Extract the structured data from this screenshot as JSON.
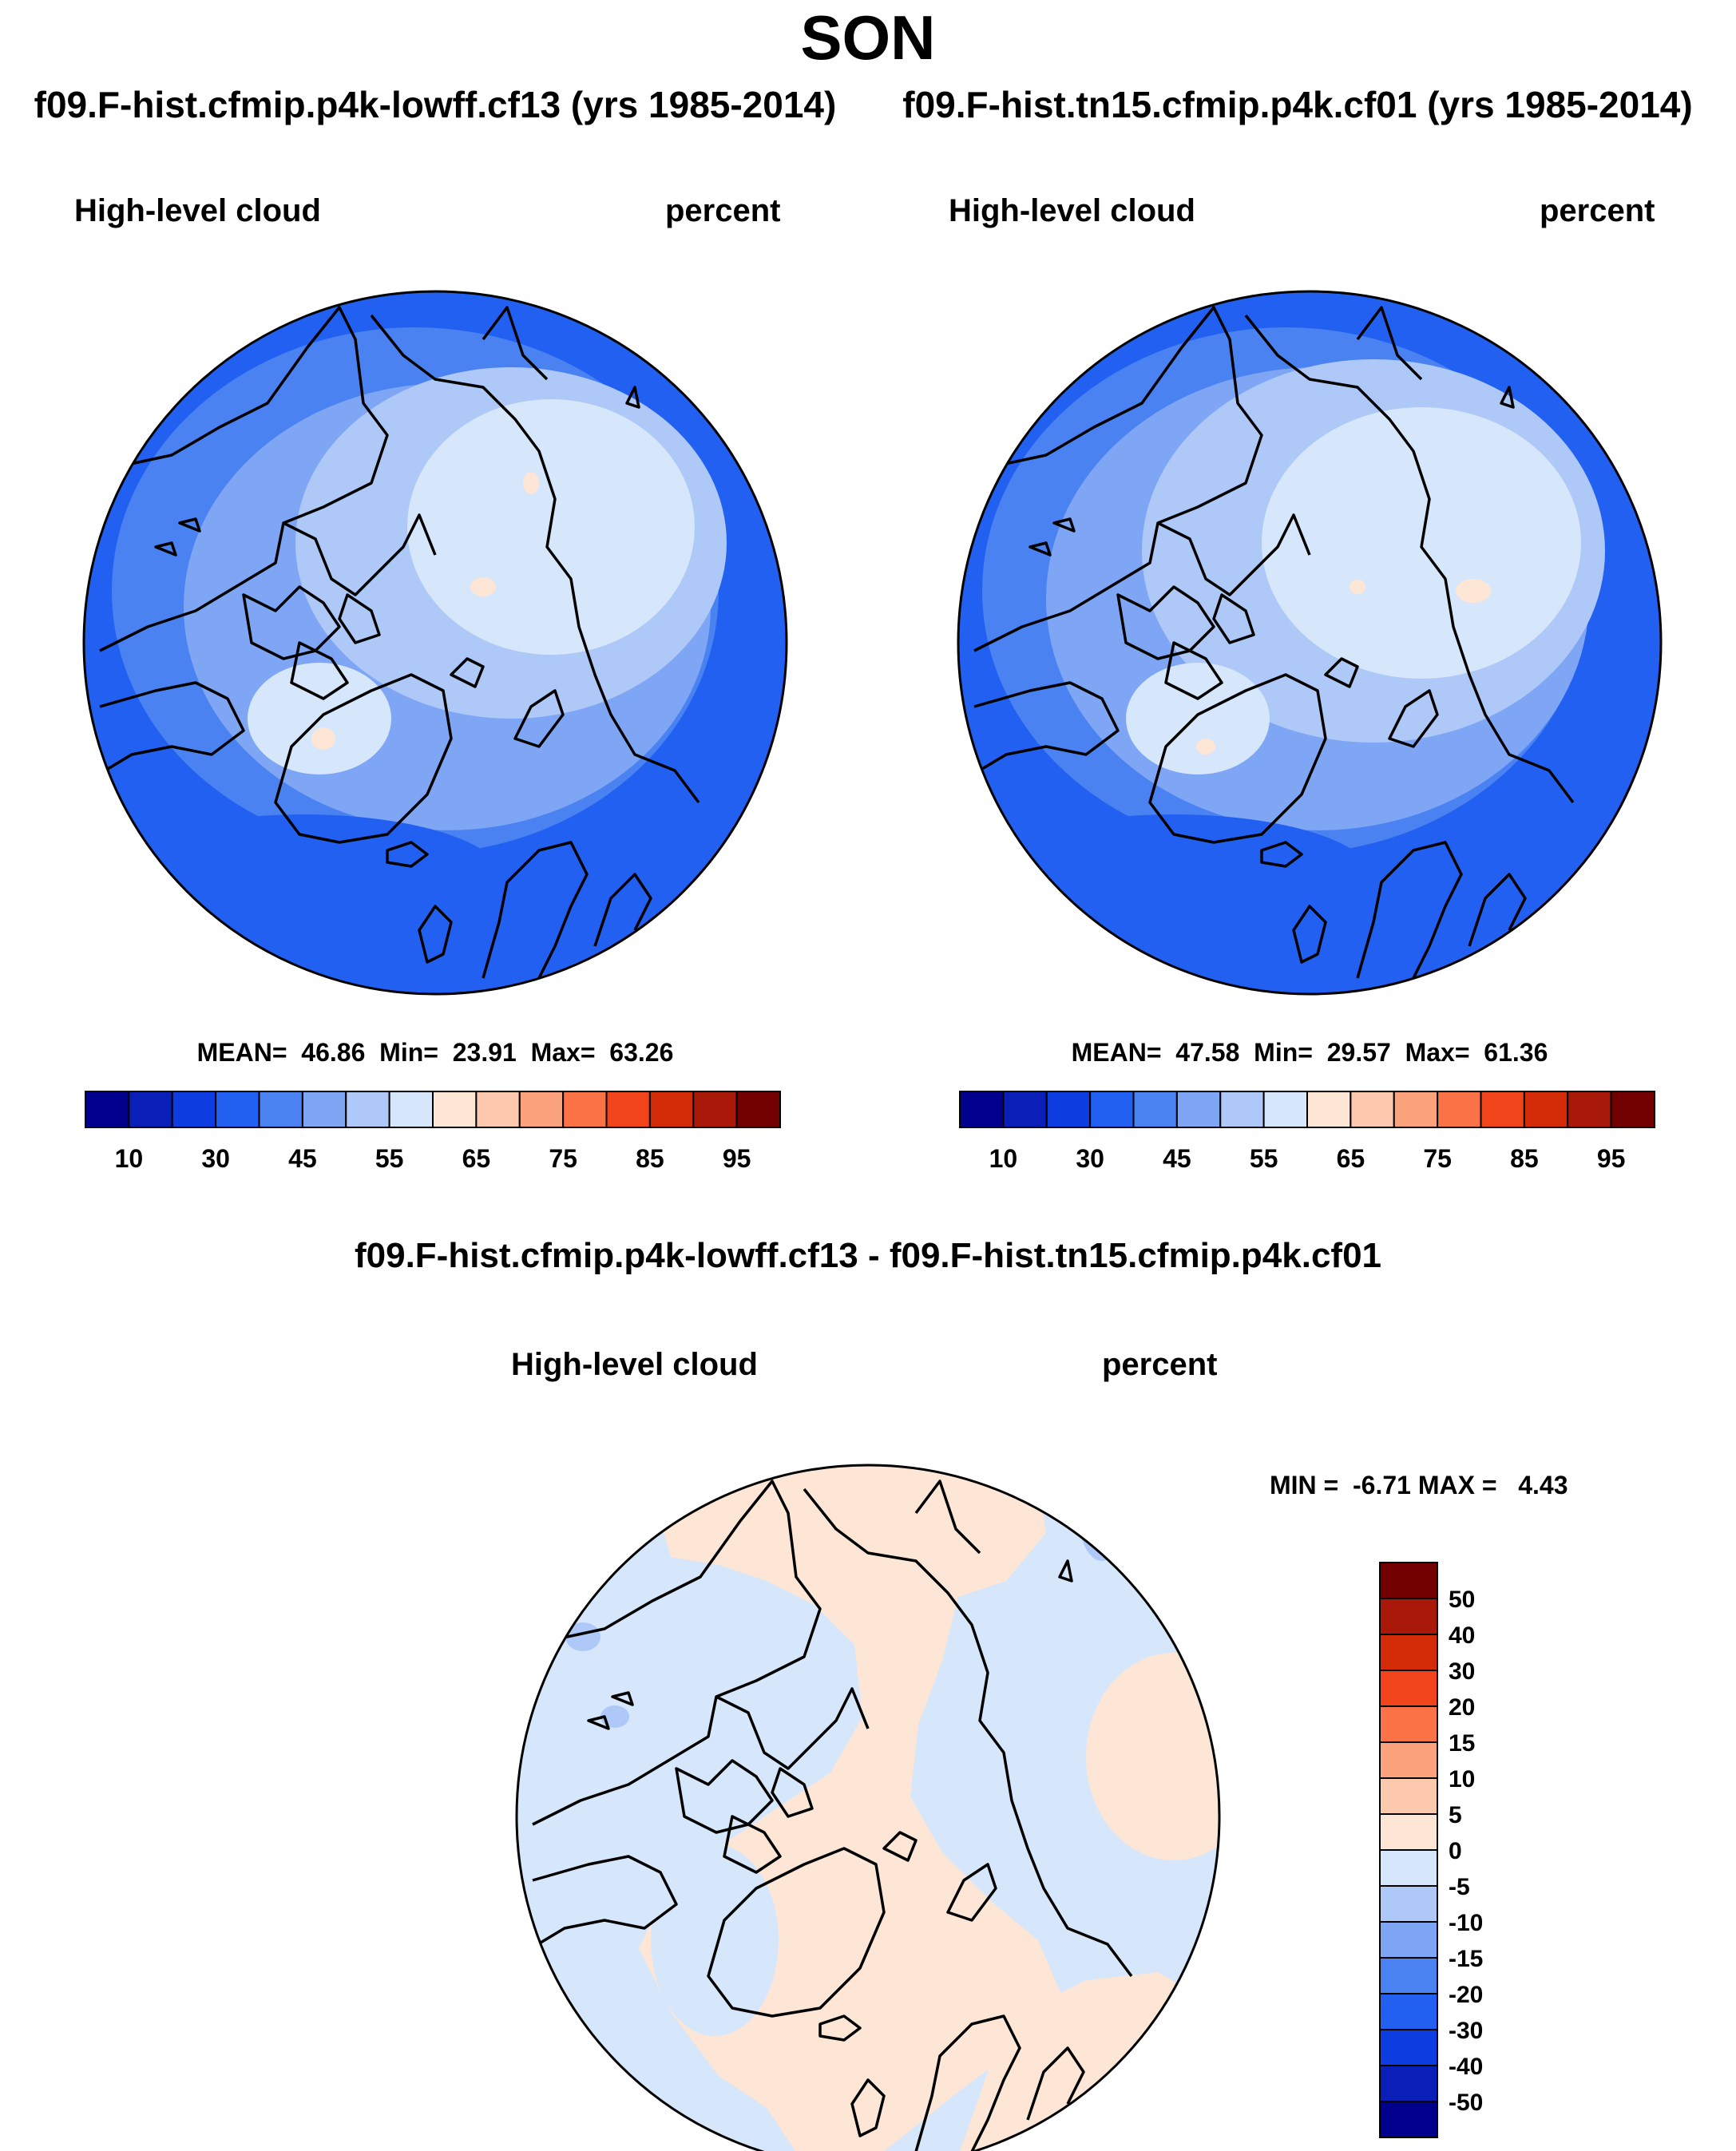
{
  "figure": {
    "title": "SON",
    "case_a": "f09.F-hist.cfmip.p4k-lowff.cf13 (yrs 1985-2014)",
    "case_b": "f09.F-hist.tn15.cfmip.p4k.cf01 (yrs 1985-2014)",
    "diff_title": "f09.F-hist.cfmip.p4k-lowff.cf13 - f09.F-hist.tn15.cfmip.p4k.cf01"
  },
  "panels": {
    "left": {
      "variable": "High-level cloud",
      "units": "percent",
      "stats": "MEAN=  46.86  Min=  23.91  Max=  63.26",
      "mean": 46.86,
      "min": 23.91,
      "max": 63.26
    },
    "right": {
      "variable": "High-level cloud",
      "units": "percent",
      "stats": "MEAN=  47.58  Min=  29.57  Max=  61.36",
      "mean": 47.58,
      "min": 29.57,
      "max": 61.36
    },
    "diff": {
      "variable": "High-level cloud",
      "units": "percent",
      "stats": "MIN =  -6.71 MAX =   4.43",
      "min": -6.71,
      "max": 4.43
    }
  },
  "colorbar_main": {
    "colors": [
      "#00008c",
      "#0a1fb8",
      "#0d3de0",
      "#2160f0",
      "#4a82f2",
      "#7fa6f5",
      "#aec8f7",
      "#d6e6fb",
      "#fde6d6",
      "#fcc9ae",
      "#fca27c",
      "#fa7246",
      "#f2441b",
      "#d32a08",
      "#a8190a",
      "#730000"
    ],
    "labels": [
      "10",
      "30",
      "45",
      "55",
      "65",
      "75",
      "85",
      "95"
    ]
  },
  "colorbar_diff": {
    "colors": [
      "#00008c",
      "#0a1fb8",
      "#0d3de0",
      "#2160f0",
      "#4a82f2",
      "#7fa6f5",
      "#aec8f7",
      "#d6e6fb",
      "#fde6d6",
      "#fcc9ae",
      "#fca27c",
      "#fa7246",
      "#f2441b",
      "#d32a08",
      "#a8190a",
      "#730000"
    ],
    "labels": [
      "50",
      "40",
      "30",
      "20",
      "15",
      "10",
      "5",
      "0",
      "-5",
      "-10",
      "-15",
      "-20",
      "-30",
      "-40",
      "-50"
    ]
  },
  "colors": {
    "land_outline": "#000000",
    "deep_blue": "#2160f0",
    "mid_blue": "#4a82f2",
    "light_blue": "#7fa6f5",
    "pale_blue": "#aec8f7",
    "very_pale_blue": "#d6e6fb",
    "pale_orange": "#fde6d6"
  }
}
